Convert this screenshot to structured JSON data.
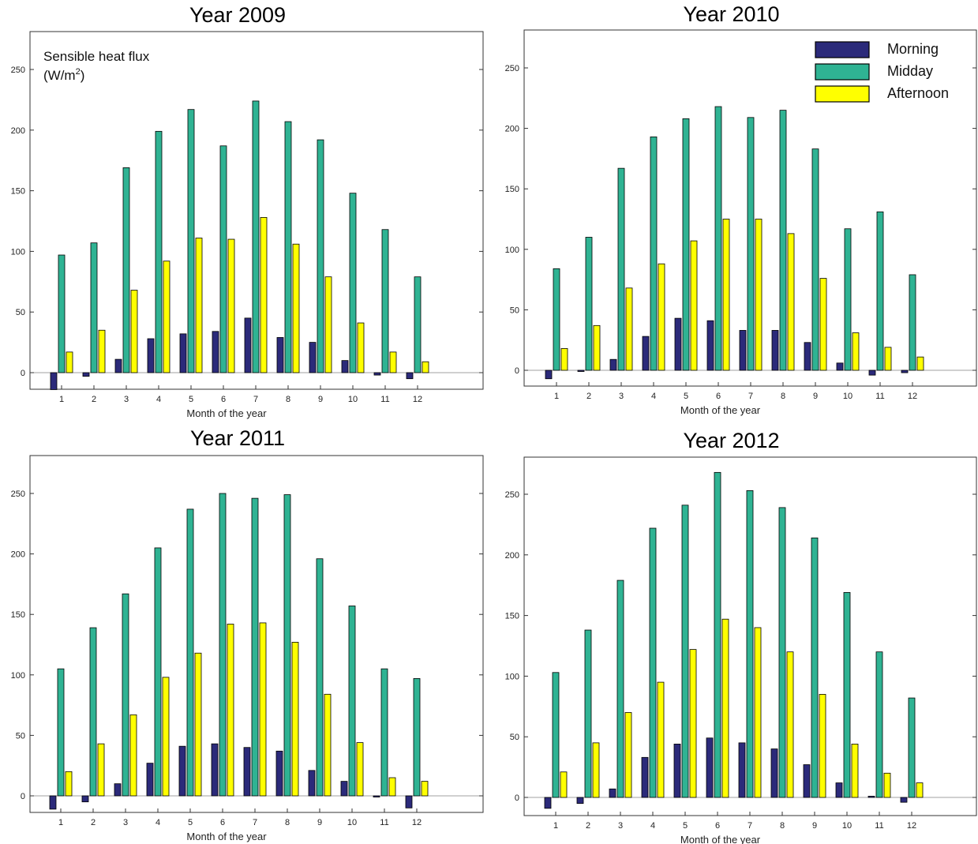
{
  "ylabel": "Sensible heat flux",
  "ylabel_unit_base": "(W/m",
  "ylabel_unit_sup": "2",
  "ylabel_unit_end": ")",
  "legend": [
    {
      "label": "Morning",
      "color": "#2b2a7a"
    },
    {
      "label": "Midday",
      "color": "#2fb393"
    },
    {
      "label": "Afternoon",
      "color": "#ffff00"
    }
  ],
  "colors": {
    "morning": "#2b2a7a",
    "midday": "#2fb393",
    "afternoon": "#ffff00",
    "bar_edge": "#000000",
    "zero_line": "#a0a0a0"
  },
  "chart_data": [
    {
      "type": "bar",
      "title": "Year 2009",
      "xlabel": "Month of the year",
      "categories": [
        "1",
        "2",
        "3",
        "4",
        "5",
        "6",
        "7",
        "8",
        "9",
        "10",
        "11",
        "12"
      ],
      "ylim": [
        -14,
        281
      ],
      "yticks": [
        0,
        50,
        100,
        150,
        200,
        250
      ],
      "series": [
        {
          "name": "Morning",
          "values": [
            -14,
            -3,
            11,
            28,
            32,
            34,
            45,
            29,
            25,
            10,
            -2,
            -5
          ]
        },
        {
          "name": "Midday",
          "values": [
            97,
            107,
            169,
            199,
            217,
            187,
            224,
            207,
            192,
            148,
            118,
            79
          ]
        },
        {
          "name": "Afternoon",
          "values": [
            17,
            35,
            68,
            92,
            111,
            110,
            128,
            106,
            79,
            41,
            17,
            9
          ]
        }
      ]
    },
    {
      "type": "bar",
      "title": "Year 2010",
      "xlabel": "Month of the year",
      "categories": [
        "1",
        "2",
        "3",
        "4",
        "5",
        "6",
        "7",
        "8",
        "9",
        "10",
        "11",
        "12"
      ],
      "ylim": [
        -14,
        281
      ],
      "yticks": [
        0,
        50,
        100,
        150,
        200,
        250
      ],
      "series": [
        {
          "name": "Morning",
          "values": [
            -7,
            -1,
            9,
            28,
            43,
            41,
            33,
            33,
            23,
            6,
            -4,
            -2
          ]
        },
        {
          "name": "Midday",
          "values": [
            84,
            110,
            167,
            193,
            208,
            218,
            209,
            215,
            183,
            117,
            131,
            79
          ]
        },
        {
          "name": "Afternoon",
          "values": [
            18,
            37,
            68,
            88,
            107,
            125,
            125,
            113,
            76,
            31,
            19,
            11
          ]
        }
      ]
    },
    {
      "type": "bar",
      "title": "Year 2011",
      "xlabel": "Month of the year",
      "categories": [
        "1",
        "2",
        "3",
        "4",
        "5",
        "6",
        "7",
        "8",
        "9",
        "10",
        "11",
        "12"
      ],
      "ylim": [
        -14,
        281
      ],
      "yticks": [
        0,
        50,
        100,
        150,
        200,
        250
      ],
      "series": [
        {
          "name": "Morning",
          "values": [
            -11,
            -5,
            10,
            27,
            41,
            43,
            40,
            37,
            21,
            12,
            -1,
            -10
          ]
        },
        {
          "name": "Midday",
          "values": [
            105,
            139,
            167,
            205,
            237,
            250,
            246,
            249,
            196,
            157,
            105,
            97
          ]
        },
        {
          "name": "Afternoon",
          "values": [
            20,
            43,
            67,
            98,
            118,
            142,
            143,
            127,
            84,
            44,
            15,
            12
          ]
        }
      ]
    },
    {
      "type": "bar",
      "title": "Year 2012",
      "xlabel": "Month of the year",
      "categories": [
        "1",
        "2",
        "3",
        "4",
        "5",
        "6",
        "7",
        "8",
        "9",
        "10",
        "11",
        "12"
      ],
      "ylim": [
        -14,
        281
      ],
      "yticks": [
        0,
        50,
        100,
        150,
        200,
        250
      ],
      "series": [
        {
          "name": "Morning",
          "values": [
            -9,
            -5,
            7,
            33,
            44,
            49,
            45,
            40,
            27,
            12,
            1,
            -4
          ]
        },
        {
          "name": "Midday",
          "values": [
            103,
            138,
            179,
            222,
            241,
            268,
            253,
            239,
            214,
            169,
            120,
            82
          ]
        },
        {
          "name": "Afternoon",
          "values": [
            21,
            45,
            70,
            95,
            122,
            147,
            140,
            120,
            85,
            44,
            20,
            12
          ]
        }
      ]
    }
  ]
}
